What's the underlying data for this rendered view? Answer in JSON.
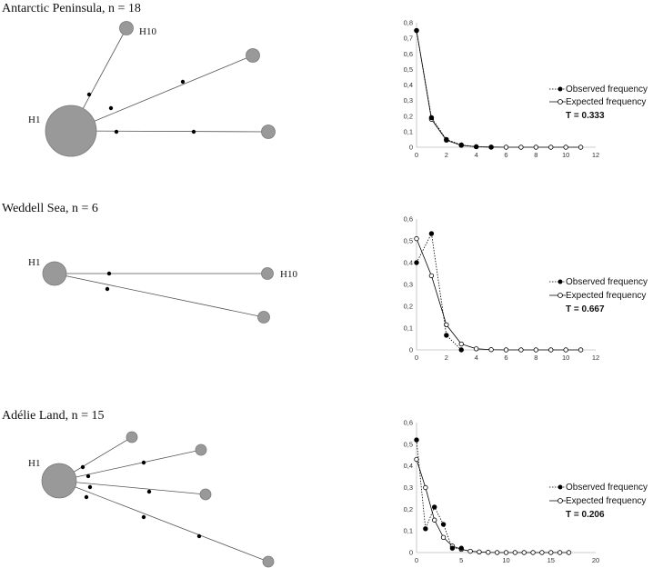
{
  "panels": [
    {
      "title": "Antarctic Peninsula, n = 18",
      "network": {
        "labels": {
          "big": "H1",
          "second": "H10"
        }
      },
      "chart_data": {
        "type": "line",
        "x": [
          0,
          1,
          2,
          3,
          4,
          5,
          6,
          7,
          8,
          9,
          10,
          11
        ],
        "xlim": [
          0,
          12
        ],
        "xticks": [
          0,
          2,
          4,
          6,
          8,
          10,
          12
        ],
        "ylim": [
          0,
          0.8
        ],
        "yticks": [
          "0",
          "0,1",
          "0,2",
          "0,3",
          "0,4",
          "0,5",
          "0,6",
          "0,7",
          "0,8"
        ],
        "series": [
          {
            "name": "Observed frequency",
            "values": [
              0.75,
              0.19,
              0.05,
              0.015,
              0.003,
              0,
              null,
              null,
              null,
              null,
              null,
              null
            ]
          },
          {
            "name": "Expected frequency",
            "values": [
              0.75,
              0.18,
              0.045,
              0.012,
              0.003,
              0.001,
              0,
              0,
              0,
              0,
              0,
              0
            ]
          }
        ],
        "annotation": "T = 0.333"
      }
    },
    {
      "title": "Weddell Sea, n = 6",
      "network": {
        "labels": {
          "big": "H1",
          "second": "H10"
        }
      },
      "chart_data": {
        "type": "line",
        "x": [
          0,
          1,
          2,
          3,
          4,
          5,
          6,
          7,
          8,
          9,
          10,
          11
        ],
        "xlim": [
          0,
          12
        ],
        "xticks": [
          0,
          2,
          4,
          6,
          8,
          10,
          12
        ],
        "ylim": [
          0,
          0.6
        ],
        "yticks": [
          "0",
          "0,1",
          "0,2",
          "0,3",
          "0,4",
          "0,5",
          "0,6"
        ],
        "series": [
          {
            "name": "Observed frequency",
            "values": [
              0.4,
              0.533,
              0.067,
              0,
              null,
              null,
              null,
              null,
              null,
              null,
              null,
              null
            ]
          },
          {
            "name": "Expected frequency",
            "values": [
              0.51,
              0.34,
              0.115,
              0.027,
              0.005,
              0.001,
              0,
              0,
              0,
              0,
              0,
              0
            ]
          }
        ],
        "annotation": "T = 0.667"
      }
    },
    {
      "title": "Adélie Land, n = 15",
      "network": {
        "labels": {
          "big": "H1"
        }
      },
      "chart_data": {
        "type": "line",
        "x": [
          0,
          1,
          2,
          3,
          4,
          5,
          6,
          7,
          8,
          9,
          10,
          11,
          12,
          13,
          14,
          15,
          16,
          17
        ],
        "xlim": [
          0,
          20
        ],
        "xticks": [
          0,
          5,
          10,
          15,
          20
        ],
        "ylim": [
          0,
          0.6
        ],
        "yticks": [
          "0",
          "0,1",
          "0,2",
          "0,3",
          "0,4",
          "0,5",
          "0,6"
        ],
        "series": [
          {
            "name": "Observed frequency",
            "values": [
              0.52,
              0.11,
              0.21,
              0.13,
              0.02,
              0.02,
              null,
              null,
              null,
              null,
              null,
              null,
              null,
              null,
              null,
              null,
              null,
              null
            ]
          },
          {
            "name": "Expected frequency",
            "values": [
              0.43,
              0.3,
              0.15,
              0.07,
              0.03,
              0.015,
              0.006,
              0.003,
              0.001,
              0,
              0,
              0,
              0,
              0,
              0,
              0,
              0,
              0
            ]
          }
        ],
        "annotation": "T = 0.206"
      }
    }
  ]
}
